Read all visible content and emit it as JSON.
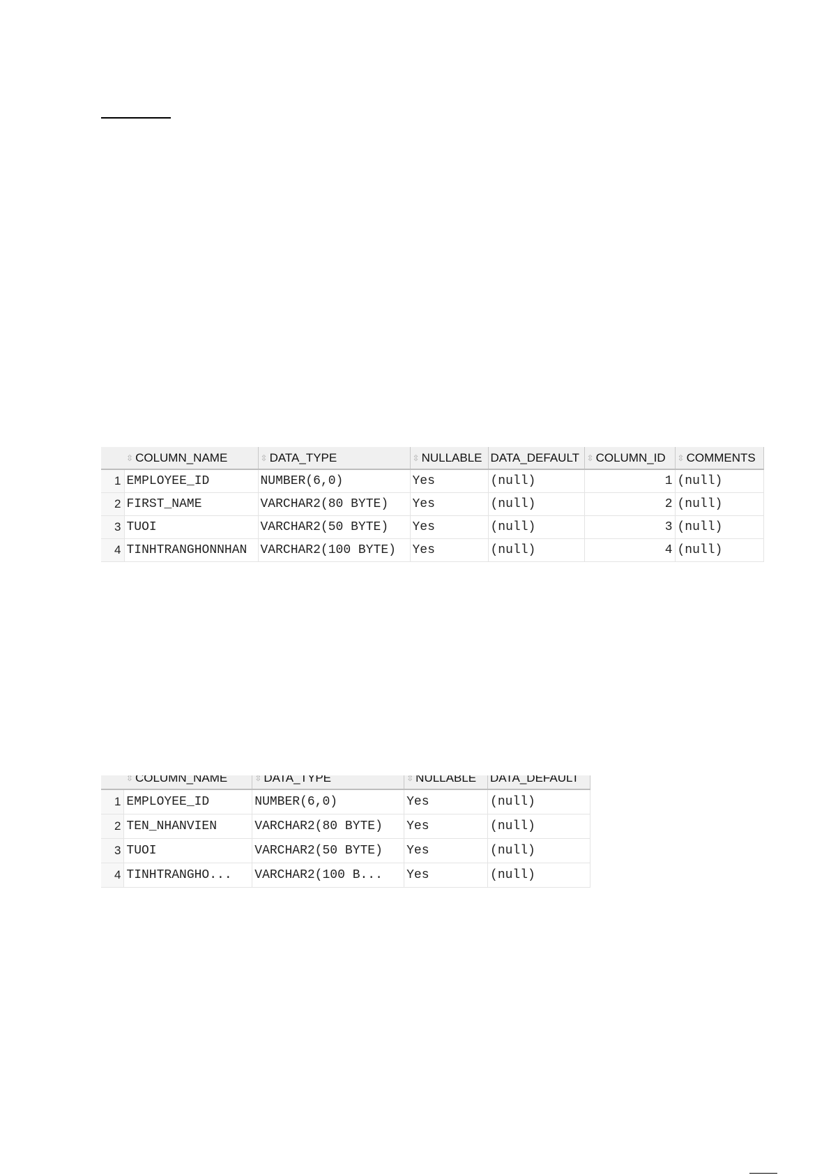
{
  "table1": {
    "headers": [
      "COLUMN_NAME",
      "DATA_TYPE",
      "NULLABLE",
      "DATA_DEFAULT",
      "COLUMN_ID",
      "COMMENTS"
    ],
    "rows": [
      {
        "n": "1",
        "name": "EMPLOYEE_ID",
        "type": "NUMBER(6,0)",
        "nullable": "Yes",
        "default": "(null)",
        "id": "1",
        "comments": "(null)"
      },
      {
        "n": "2",
        "name": "FIRST_NAME",
        "type": "VARCHAR2(80 BYTE)",
        "nullable": "Yes",
        "default": "(null)",
        "id": "2",
        "comments": "(null)"
      },
      {
        "n": "3",
        "name": "TUOI",
        "type": "VARCHAR2(50 BYTE)",
        "nullable": "Yes",
        "default": "(null)",
        "id": "3",
        "comments": "(null)"
      },
      {
        "n": "4",
        "name": "TINHTRANGHONNHAN",
        "type": "VARCHAR2(100 BYTE)",
        "nullable": "Yes",
        "default": "(null)",
        "id": "4",
        "comments": "(null)"
      }
    ]
  },
  "table2": {
    "headers": [
      "COLUMN_NAME",
      "DATA_TYPE",
      "NULLABLE",
      "DATA_DEFAULT"
    ],
    "rows": [
      {
        "n": "1",
        "name": "EMPLOYEE_ID",
        "type": "NUMBER(6,0)",
        "nullable": "Yes",
        "default": "(null)"
      },
      {
        "n": "2",
        "name": "TEN_NHANVIEN",
        "type": "VARCHAR2(80 BYTE)",
        "nullable": "Yes",
        "default": "(null)"
      },
      {
        "n": "3",
        "name": "TUOI",
        "type": "VARCHAR2(50 BYTE)",
        "nullable": "Yes",
        "default": "(null)"
      },
      {
        "n": "4",
        "name": "TINHTRANGHO...",
        "type": "VARCHAR2(100 B...",
        "nullable": "Yes",
        "default": "(null)"
      }
    ]
  },
  "icons": {
    "sort": "sort-arrows-icon"
  }
}
